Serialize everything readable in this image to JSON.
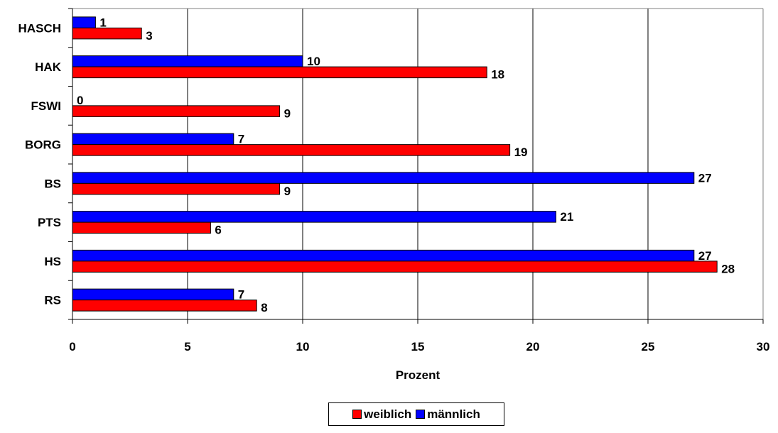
{
  "chart_data": {
    "type": "bar",
    "orientation": "horizontal",
    "categories": [
      "HASCH",
      "HAK",
      "FSWI",
      "BORG",
      "BS",
      "PTS",
      "HS",
      "RS"
    ],
    "series": [
      {
        "name": "männlich",
        "color": "#0000ff",
        "values": [
          1,
          10,
          0,
          7,
          27,
          21,
          27,
          7
        ]
      },
      {
        "name": "weiblich",
        "color": "#ff0000",
        "values": [
          3,
          18,
          9,
          19,
          9,
          6,
          28,
          8
        ]
      }
    ],
    "title": "",
    "xlabel": "Prozent",
    "ylabel": "",
    "xlim": [
      0,
      30
    ],
    "xticks": [
      0,
      5,
      10,
      15,
      20,
      25,
      30
    ],
    "grid": "vertical",
    "legend": {
      "position": "bottom",
      "entries": [
        {
          "label": "weiblich",
          "color": "#ff0000"
        },
        {
          "label": "männlich",
          "color": "#0000ff"
        }
      ]
    }
  }
}
